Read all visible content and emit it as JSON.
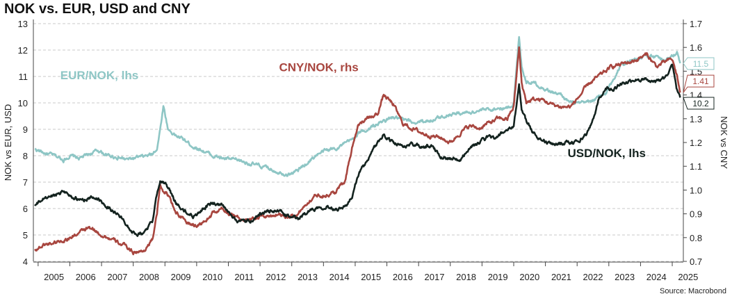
{
  "title": "NOK vs. EUR, USD and CNY",
  "source": "Source: Macrobond",
  "colors": {
    "eur": "#8ec6c5",
    "cny": "#a8463f",
    "usd": "#14231f",
    "grid": "#c8c8c8"
  },
  "chart_data": {
    "type": "line",
    "title": "NOK vs. EUR, USD and CNY",
    "ylabel": "NOK vs EUR, USD",
    "y2label": "NOK vs CNY",
    "ylim": [
      4,
      13
    ],
    "y2lim": [
      0.7,
      1.7
    ],
    "xlim": [
      2004.85,
      2025.35
    ],
    "left_ticks": [
      "4",
      "5",
      "6",
      "7",
      "8",
      "9",
      "10",
      "11",
      "12",
      "13"
    ],
    "right_ticks": [
      "0.7",
      "0.8",
      "0.9",
      "1.0",
      "1.1",
      "1.2",
      "1.3",
      "1.4",
      "1.5",
      "1.6",
      "1.7"
    ],
    "x_ticks": [
      "2005",
      "2006",
      "2007",
      "2008",
      "2009",
      "2010",
      "2011",
      "2012",
      "2013",
      "2014",
      "2015",
      "2016",
      "2017",
      "2018",
      "2019",
      "2020",
      "2021",
      "2022",
      "2023",
      "2024",
      "2025"
    ],
    "grid": true,
    "series": [
      {
        "name": "EUR/NOK, lhs",
        "axis": "left",
        "key": "eur",
        "label_pos": [
          2005.7,
          10.9
        ],
        "last_value": "11.5",
        "x": [
          2004.9,
          2005.2,
          2005.5,
          2005.8,
          2006.0,
          2006.3,
          2006.6,
          2006.9,
          2007.2,
          2007.5,
          2007.8,
          2008.0,
          2008.3,
          2008.6,
          2008.75,
          2008.85,
          2008.95,
          2009.1,
          2009.3,
          2009.6,
          2009.9,
          2010.2,
          2010.5,
          2010.8,
          2011.1,
          2011.4,
          2011.7,
          2012.0,
          2012.3,
          2012.6,
          2012.9,
          2013.2,
          2013.5,
          2013.8,
          2014.1,
          2014.4,
          2014.7,
          2014.9,
          2015.1,
          2015.4,
          2015.7,
          2015.9,
          2016.2,
          2016.5,
          2016.8,
          2017.1,
          2017.4,
          2017.7,
          2018.0,
          2018.3,
          2018.6,
          2018.9,
          2019.2,
          2019.5,
          2019.8,
          2020.0,
          2020.17,
          2020.25,
          2020.4,
          2020.6,
          2020.9,
          2021.2,
          2021.5,
          2021.8,
          2022.1,
          2022.4,
          2022.7,
          2022.9,
          2023.1,
          2023.4,
          2023.7,
          2023.9,
          2024.2,
          2024.5,
          2024.8,
          2025.0,
          2025.15,
          2025.25
        ],
        "y": [
          8.25,
          8.1,
          8.0,
          7.85,
          8.0,
          7.9,
          8.05,
          8.2,
          8.0,
          7.95,
          7.85,
          7.9,
          7.95,
          8.05,
          8.3,
          9.0,
          9.9,
          9.0,
          8.8,
          8.6,
          8.35,
          8.2,
          8.0,
          7.9,
          7.85,
          7.8,
          7.7,
          7.6,
          7.5,
          7.4,
          7.3,
          7.45,
          7.75,
          8.05,
          8.2,
          8.3,
          8.45,
          8.6,
          8.85,
          9.0,
          9.2,
          9.3,
          9.45,
          9.35,
          9.25,
          9.3,
          9.35,
          9.45,
          9.6,
          9.6,
          9.65,
          9.7,
          9.75,
          9.8,
          9.8,
          10.0,
          12.5,
          11.4,
          10.8,
          10.8,
          10.6,
          10.4,
          10.3,
          10.0,
          9.95,
          10.05,
          10.2,
          10.35,
          10.8,
          11.5,
          11.6,
          11.7,
          11.8,
          11.7,
          11.6,
          11.8,
          11.9,
          11.5
        ]
      },
      {
        "name": "CNY/NOK, rhs",
        "axis": "right",
        "key": "cny",
        "label_pos": [
          2012.6,
          1.5
        ],
        "last_value": "1.41",
        "x": [
          2004.9,
          2005.2,
          2005.5,
          2005.8,
          2006.0,
          2006.3,
          2006.6,
          2006.9,
          2007.2,
          2007.5,
          2007.8,
          2008.0,
          2008.3,
          2008.6,
          2008.75,
          2008.85,
          2008.95,
          2009.1,
          2009.3,
          2009.6,
          2009.9,
          2010.2,
          2010.5,
          2010.8,
          2011.1,
          2011.4,
          2011.7,
          2012.0,
          2012.3,
          2012.6,
          2012.9,
          2013.2,
          2013.5,
          2013.8,
          2014.1,
          2014.4,
          2014.7,
          2014.9,
          2015.1,
          2015.4,
          2015.7,
          2015.9,
          2016.2,
          2016.5,
          2016.8,
          2017.1,
          2017.4,
          2017.7,
          2018.0,
          2018.3,
          2018.6,
          2018.9,
          2019.2,
          2019.5,
          2019.8,
          2020.0,
          2020.17,
          2020.25,
          2020.4,
          2020.6,
          2020.9,
          2021.2,
          2021.5,
          2021.8,
          2022.1,
          2022.4,
          2022.7,
          2022.9,
          2023.1,
          2023.4,
          2023.7,
          2023.9,
          2024.2,
          2024.5,
          2024.8,
          2025.0,
          2025.15,
          2025.25
        ],
        "y": [
          0.75,
          0.77,
          0.78,
          0.79,
          0.8,
          0.82,
          0.84,
          0.82,
          0.8,
          0.78,
          0.76,
          0.74,
          0.74,
          0.79,
          0.9,
          1.02,
          1.0,
          0.98,
          0.92,
          0.87,
          0.85,
          0.86,
          0.9,
          0.92,
          0.9,
          0.88,
          0.87,
          0.89,
          0.89,
          0.9,
          0.89,
          0.9,
          0.95,
          0.98,
          0.98,
          0.99,
          1.05,
          1.18,
          1.28,
          1.3,
          1.32,
          1.4,
          1.36,
          1.28,
          1.26,
          1.24,
          1.23,
          1.22,
          1.2,
          1.24,
          1.27,
          1.26,
          1.28,
          1.3,
          1.3,
          1.35,
          1.6,
          1.45,
          1.37,
          1.38,
          1.38,
          1.36,
          1.35,
          1.35,
          1.4,
          1.45,
          1.48,
          1.5,
          1.52,
          1.53,
          1.54,
          1.55,
          1.57,
          1.52,
          1.54,
          1.55,
          1.48,
          1.41
        ]
      },
      {
        "name": "USD/NOK, lhs",
        "axis": "left",
        "key": "usd",
        "label_pos": [
          2021.7,
          7.95
        ],
        "last_value": "10.2",
        "x": [
          2004.9,
          2005.2,
          2005.5,
          2005.8,
          2006.0,
          2006.3,
          2006.6,
          2006.9,
          2007.2,
          2007.5,
          2007.8,
          2008.0,
          2008.3,
          2008.6,
          2008.75,
          2008.85,
          2008.95,
          2009.1,
          2009.3,
          2009.6,
          2009.9,
          2010.2,
          2010.5,
          2010.8,
          2011.1,
          2011.4,
          2011.7,
          2012.0,
          2012.3,
          2012.6,
          2012.9,
          2013.2,
          2013.5,
          2013.8,
          2014.1,
          2014.4,
          2014.7,
          2014.9,
          2015.1,
          2015.4,
          2015.7,
          2015.9,
          2016.2,
          2016.5,
          2016.8,
          2017.1,
          2017.4,
          2017.7,
          2018.0,
          2018.3,
          2018.6,
          2018.9,
          2019.2,
          2019.5,
          2019.8,
          2020.0,
          2020.17,
          2020.25,
          2020.4,
          2020.6,
          2020.9,
          2021.2,
          2021.5,
          2021.8,
          2022.1,
          2022.4,
          2022.7,
          2022.9,
          2023.1,
          2023.4,
          2023.7,
          2023.9,
          2024.2,
          2024.5,
          2024.8,
          2025.0,
          2025.15,
          2025.25
        ],
        "y": [
          6.1,
          6.4,
          6.5,
          6.7,
          6.5,
          6.3,
          6.4,
          6.4,
          6.05,
          5.8,
          5.4,
          5.1,
          5.05,
          5.5,
          6.6,
          7.1,
          7.0,
          6.8,
          6.3,
          5.9,
          5.7,
          6.0,
          6.2,
          6.1,
          5.7,
          5.5,
          5.5,
          5.8,
          5.9,
          5.9,
          5.7,
          5.6,
          5.9,
          6.05,
          6.1,
          6.0,
          6.1,
          6.4,
          7.3,
          7.8,
          8.5,
          8.8,
          8.5,
          8.3,
          8.45,
          8.3,
          8.4,
          8.0,
          7.9,
          7.8,
          8.3,
          8.5,
          8.7,
          8.7,
          9.0,
          9.05,
          10.7,
          9.8,
          9.3,
          8.9,
          8.6,
          8.4,
          8.5,
          8.5,
          8.6,
          9.0,
          10.2,
          10.6,
          10.5,
          10.7,
          10.8,
          10.9,
          10.9,
          10.8,
          11.0,
          11.4,
          10.5,
          10.2
        ]
      }
    ]
  }
}
